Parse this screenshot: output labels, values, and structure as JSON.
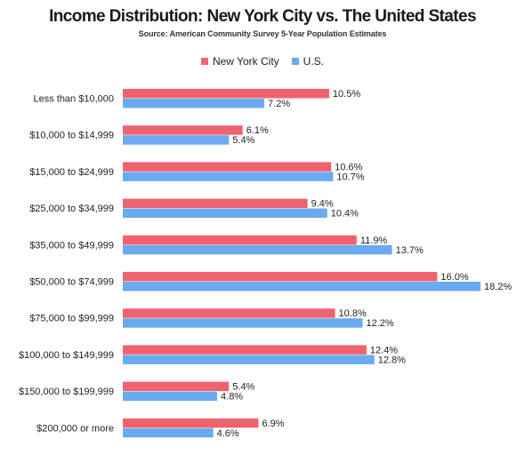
{
  "chart_data": {
    "type": "bar",
    "orientation": "horizontal",
    "title": "Income Distribution: New York City vs. The United States",
    "subtitle": "Source: American Community Survey 5-Year Population Estimates",
    "categories": [
      "Less than $10,000",
      "$10,000 to $14,999",
      "$15,000 to $24,999",
      "$25,000 to $34,999",
      "$35,000 to $49,999",
      "$50,000 to $74,999",
      "$75,000 to $99,999",
      "$100,000 to $149,999",
      "$150,000 to $199,999",
      "$200,000 or more"
    ],
    "series": [
      {
        "name": "New York City",
        "color": "#f0636e",
        "values": [
          10.5,
          6.1,
          10.6,
          9.4,
          11.9,
          16.0,
          10.8,
          12.4,
          5.4,
          6.9
        ],
        "labels": [
          "10.5%",
          "6.1%",
          "10.6%",
          "9.4%",
          "11.9%",
          "16.0%",
          "10.8%",
          "12.4%",
          "5.4%",
          "6.9%"
        ]
      },
      {
        "name": "U.S.",
        "color": "#6aaaf0",
        "values": [
          7.2,
          5.4,
          10.7,
          10.4,
          13.7,
          18.2,
          12.2,
          12.8,
          4.8,
          4.6
        ],
        "labels": [
          "7.2%",
          "5.4%",
          "10.7%",
          "10.4%",
          "13.7%",
          "18.2%",
          "12.2%",
          "12.8%",
          "4.8%",
          "4.6%"
        ]
      }
    ],
    "xlim": [
      0,
      18.2
    ],
    "legend_position": "top-center",
    "grid": false
  }
}
